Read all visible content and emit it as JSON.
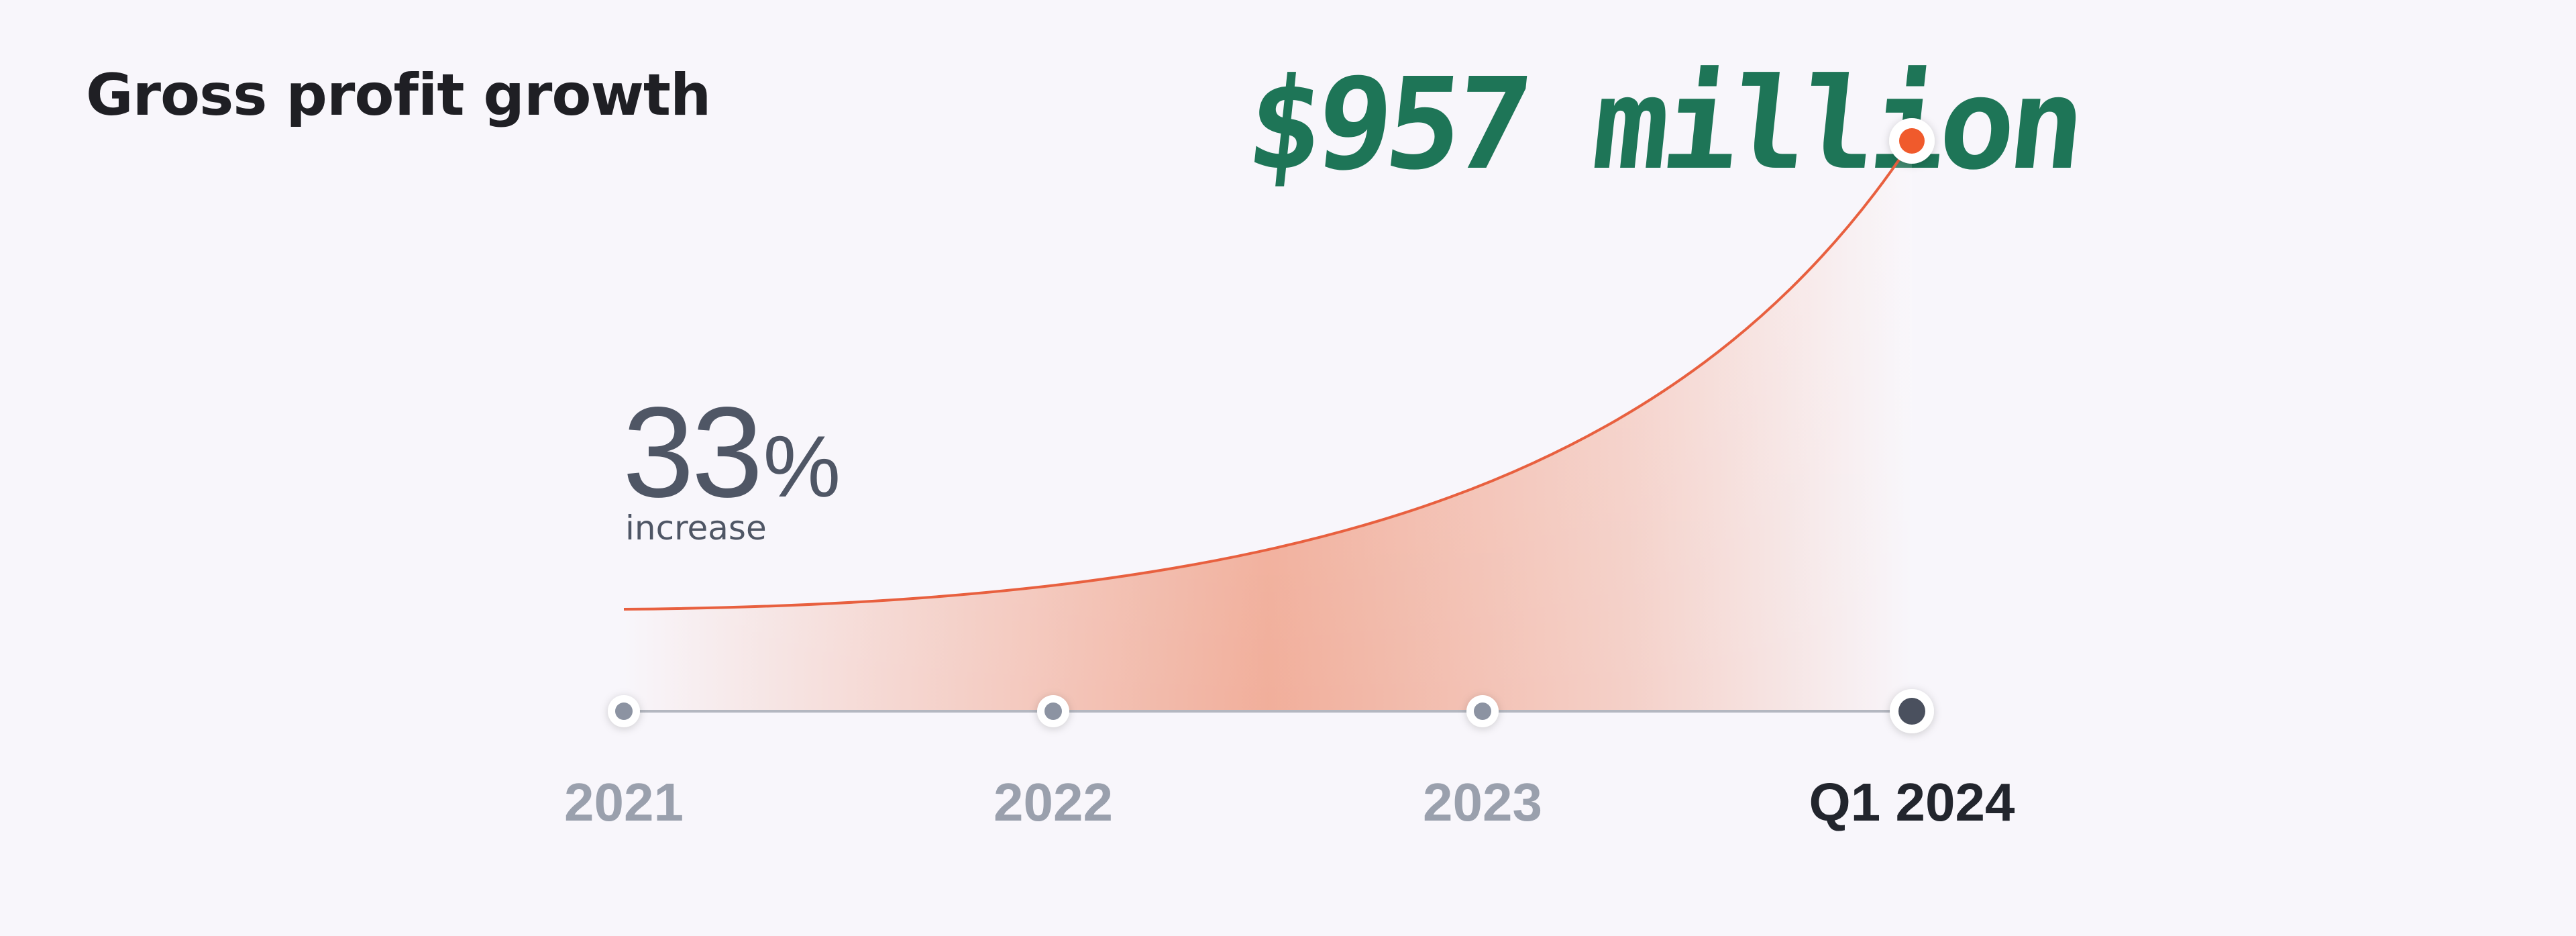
{
  "chart_data": {
    "type": "area",
    "title": "Gross profit growth",
    "categories": [
      "2021",
      "2022",
      "2023",
      "Q1 2024"
    ],
    "highlight_category": "Q1 2024",
    "annotation_value": "$957 million",
    "stat": {
      "number": "33",
      "unit": "%",
      "caption": "increase"
    },
    "grid": false,
    "legend": "none",
    "colors": {
      "line": "#e8603f",
      "area": "#f0a28a",
      "end_dot": "#f05a2c",
      "callout": "#1e7557",
      "axis": "#b4b7c0",
      "axis_dot": "#8c93a2",
      "axis_dot_current": "#4a505e"
    }
  }
}
